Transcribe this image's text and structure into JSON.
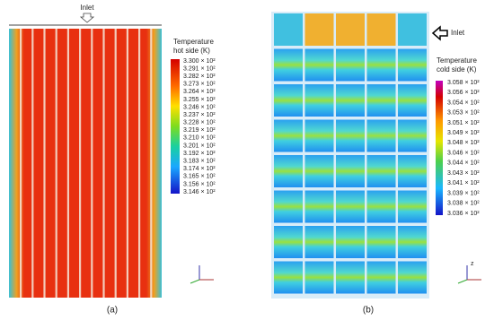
{
  "panel_a": {
    "inlet": "Inlet",
    "legend_title": [
      "Temperature",
      "hot side (K)"
    ],
    "scale_labels": [
      "3.300 × 10²",
      "3.291 × 10²",
      "3.282 × 10²",
      "3.273 × 10²",
      "3.264 × 10²",
      "3.255 × 10²",
      "3.246 × 10²",
      "3.237 × 10²",
      "3.228 × 10²",
      "3.219 × 10²",
      "3.210 × 10²",
      "3.201 × 10²",
      "3.192 × 10²",
      "3.183 × 10²",
      "3.174 × 10²",
      "3.165 × 10²",
      "3.156 × 10²",
      "3.146 × 10²"
    ],
    "caption": "(a)"
  },
  "panel_b": {
    "inlet": "Inlet",
    "legend_title": [
      "Temperature",
      "cold side (K)"
    ],
    "scale_labels": [
      "3.058 × 10²",
      "3.056 × 10²",
      "3.054 × 10²",
      "3.053 × 10²",
      "3.051 × 10²",
      "3.049 × 10²",
      "3.048 × 10²",
      "3.046 × 10²",
      "3.044 × 10²",
      "3.043 × 10²",
      "3.041 × 10²",
      "3.039 × 10²",
      "3.038 × 10²",
      "3.036 × 10²"
    ],
    "axis_label": "z",
    "caption": "(b)"
  }
}
